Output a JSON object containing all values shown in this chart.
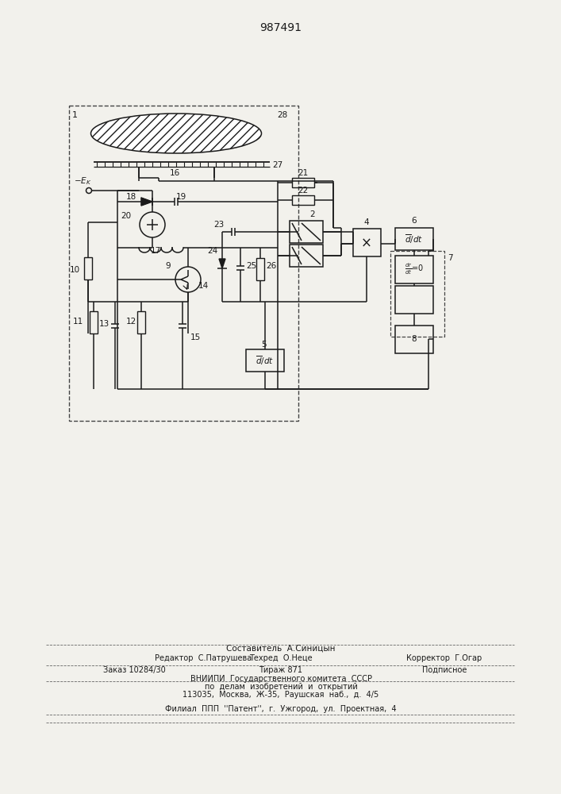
{
  "bg_color": "#f2f1ec",
  "lc": "#1a1a1a",
  "title": "987491",
  "footer1": "Составитель  А.Синицын",
  "footer2a": "Редактор  С.Патрушева",
  "footer2b": "Техред  О.Неце",
  "footer2c": "Корректор  Г.Огар",
  "footer3a": "Заказ 10284/30",
  "footer3b": "Тираж 871",
  "footer3c": "Подписное",
  "footer4": "ВНИИПИ  Государственного комитета  СССР",
  "footer5": "по  делам  изобретений  и  открытий",
  "footer6": "113035,  Москва,  Ж-35,  Раушская  наб.,  д.  4/5",
  "footer7": "Филиал  ППП  ''Патент'',  г.  Ужгород,  ул.  Проектная,  4"
}
